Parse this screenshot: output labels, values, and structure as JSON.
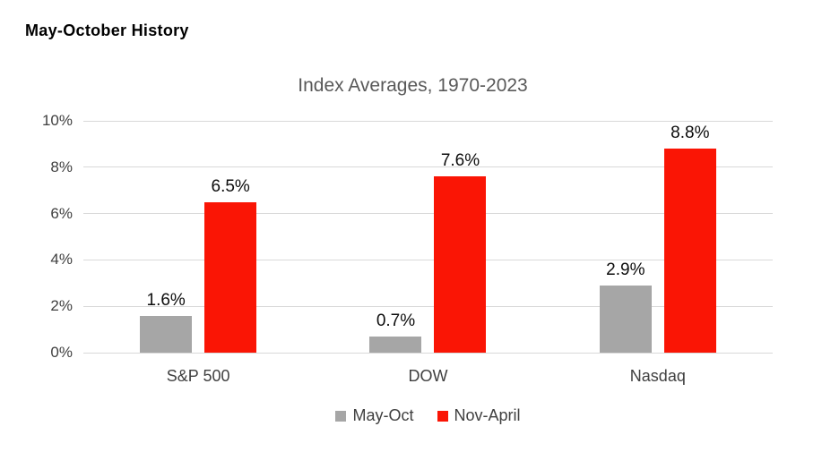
{
  "page": {
    "heading": "May-October History"
  },
  "chart_data": {
    "type": "bar",
    "title": "Index Averages, 1970-2023",
    "categories": [
      "S&P 500",
      "DOW",
      "Nasdaq"
    ],
    "series": [
      {
        "name": "May-Oct",
        "color": "#a6a6a6",
        "values": [
          1.6,
          0.7,
          2.9
        ],
        "labels": [
          "1.6%",
          "0.7%",
          "2.9%"
        ]
      },
      {
        "name": "Nov-April",
        "color": "#fa1505",
        "values": [
          6.5,
          7.6,
          8.8
        ],
        "labels": [
          "6.5%",
          "7.6%",
          "8.8%"
        ]
      }
    ],
    "xlabel": "",
    "ylabel": "",
    "ylim": [
      0,
      10
    ],
    "yticks": [
      "0%",
      "2%",
      "4%",
      "6%",
      "8%",
      "10%"
    ],
    "grid": true,
    "legend_position": "bottom",
    "colors": {
      "gridline": "#d9d9d9",
      "axis_text": "#404040",
      "title_text": "#595959",
      "data_label_text": "#0d0d0d"
    }
  }
}
